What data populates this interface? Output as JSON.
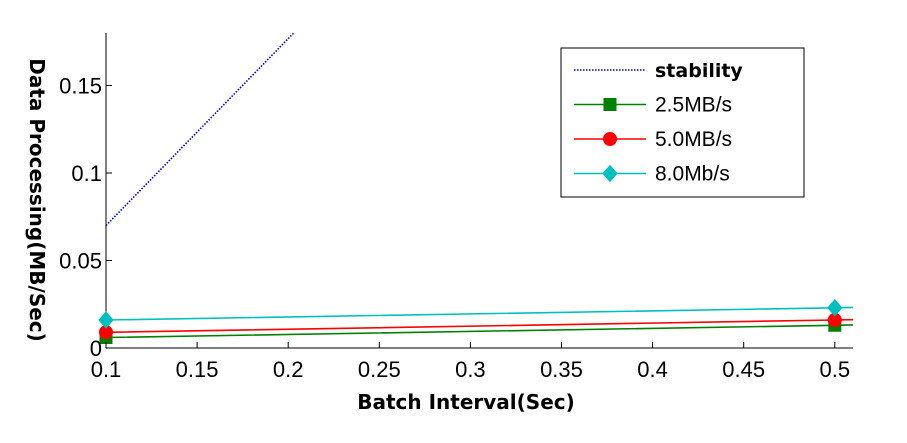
{
  "chart_data": {
    "type": "line",
    "title": "",
    "xlabel": "Batch Interval(Sec)",
    "ylabel": "Data Processing(MB/Sec)",
    "xlim": [
      0.1,
      0.51
    ],
    "ylim": [
      0,
      0.18
    ],
    "xticks": [
      "0.1",
      "0.15",
      "0.2",
      "0.25",
      "0.3",
      "0.35",
      "0.4",
      "0.45",
      "0.5"
    ],
    "yticks": [
      "0",
      "0.05",
      "0.1",
      "0.15"
    ],
    "grid": false,
    "legend_position": "top-right",
    "series": [
      {
        "name": "stability",
        "x": [
          0.1,
          0.203
        ],
        "y": [
          0.07,
          0.18
        ],
        "color": "#0000cc",
        "style": "dotted",
        "marker": "none"
      },
      {
        "name": "2.5MB/s",
        "x": [
          0.1,
          0.5
        ],
        "y": [
          0.006,
          0.013
        ],
        "color": "#008000",
        "style": "solid",
        "marker": "square"
      },
      {
        "name": "5.0MB/s",
        "x": [
          0.1,
          0.5
        ],
        "y": [
          0.009,
          0.016
        ],
        "color": "#ff0000",
        "style": "solid",
        "marker": "circle"
      },
      {
        "name": "8.0Mb/s",
        "x": [
          0.1,
          0.5
        ],
        "y": [
          0.016,
          0.023
        ],
        "color": "#00bfbf",
        "style": "solid",
        "marker": "diamond"
      }
    ]
  }
}
